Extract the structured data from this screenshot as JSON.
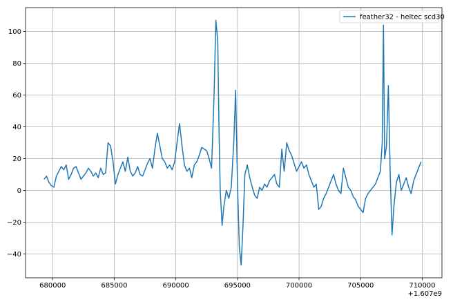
{
  "chart_data": {
    "type": "line",
    "title": "",
    "xlabel": "",
    "ylabel": "",
    "x_offset_label": "+1.607e9",
    "xlim": [
      677800,
      711600
    ],
    "ylim": [
      -55,
      115
    ],
    "xticks": [
      {
        "value": 680000,
        "label": "680000"
      },
      {
        "value": 685000,
        "label": "685000"
      },
      {
        "value": 690000,
        "label": "690000"
      },
      {
        "value": 695000,
        "label": "695000"
      },
      {
        "value": 700000,
        "label": "700000"
      },
      {
        "value": 705000,
        "label": "705000"
      },
      {
        "value": 710000,
        "label": "710000"
      }
    ],
    "yticks": [
      {
        "value": -40,
        "label": "−40"
      },
      {
        "value": -20,
        "label": "−20"
      },
      {
        "value": 0,
        "label": "0"
      },
      {
        "value": 20,
        "label": "20"
      },
      {
        "value": 40,
        "label": "40"
      },
      {
        "value": 60,
        "label": "60"
      },
      {
        "value": 80,
        "label": "80"
      },
      {
        "value": 100,
        "label": "100"
      }
    ],
    "grid": true,
    "legend_position": "top-right",
    "series": [
      {
        "name": "feather32 - heltec scd30",
        "color": "#1f77b4",
        "points": [
          [
            679300,
            7
          ],
          [
            679500,
            9
          ],
          [
            679700,
            5
          ],
          [
            679900,
            3
          ],
          [
            680100,
            2
          ],
          [
            680300,
            9
          ],
          [
            680500,
            12
          ],
          [
            680700,
            15
          ],
          [
            680900,
            13
          ],
          [
            681100,
            16
          ],
          [
            681300,
            7
          ],
          [
            681500,
            10
          ],
          [
            681700,
            14
          ],
          [
            681900,
            15
          ],
          [
            682100,
            11
          ],
          [
            682300,
            7
          ],
          [
            682500,
            9
          ],
          [
            682700,
            11
          ],
          [
            682900,
            14
          ],
          [
            683100,
            12
          ],
          [
            683300,
            9
          ],
          [
            683500,
            11
          ],
          [
            683700,
            8
          ],
          [
            683900,
            14
          ],
          [
            684100,
            10
          ],
          [
            684300,
            11
          ],
          [
            684500,
            30
          ],
          [
            684700,
            28
          ],
          [
            684900,
            18
          ],
          [
            685100,
            4
          ],
          [
            685300,
            10
          ],
          [
            685500,
            14
          ],
          [
            685700,
            18
          ],
          [
            685900,
            12
          ],
          [
            686100,
            21
          ],
          [
            686300,
            12
          ],
          [
            686500,
            9
          ],
          [
            686700,
            11
          ],
          [
            686900,
            15
          ],
          [
            687100,
            10
          ],
          [
            687300,
            9
          ],
          [
            687500,
            13
          ],
          [
            687700,
            17
          ],
          [
            687900,
            20
          ],
          [
            688100,
            14
          ],
          [
            688300,
            26
          ],
          [
            688500,
            36
          ],
          [
            688700,
            28
          ],
          [
            688900,
            20
          ],
          [
            689100,
            18
          ],
          [
            689300,
            14
          ],
          [
            689500,
            16
          ],
          [
            689700,
            13
          ],
          [
            689900,
            18
          ],
          [
            690100,
            30
          ],
          [
            690300,
            42
          ],
          [
            690500,
            28
          ],
          [
            690700,
            16
          ],
          [
            690900,
            12
          ],
          [
            691100,
            14
          ],
          [
            691300,
            8
          ],
          [
            691500,
            16
          ],
          [
            691700,
            18
          ],
          [
            691900,
            22
          ],
          [
            692100,
            27
          ],
          [
            692300,
            26
          ],
          [
            692500,
            25
          ],
          [
            692700,
            20
          ],
          [
            692900,
            14
          ],
          [
            693100,
            60
          ],
          [
            693250,
            107
          ],
          [
            693400,
            94
          ],
          [
            693500,
            40
          ],
          [
            693600,
            0
          ],
          [
            693750,
            -22
          ],
          [
            693900,
            -10
          ],
          [
            694100,
            0
          ],
          [
            694300,
            -5
          ],
          [
            694500,
            2
          ],
          [
            694700,
            30
          ],
          [
            694850,
            63
          ],
          [
            695000,
            5
          ],
          [
            695150,
            -35
          ],
          [
            695300,
            -47
          ],
          [
            695450,
            -22
          ],
          [
            695600,
            10
          ],
          [
            695800,
            16
          ],
          [
            696000,
            8
          ],
          [
            696200,
            2
          ],
          [
            696400,
            -3
          ],
          [
            696600,
            -5
          ],
          [
            696800,
            2
          ],
          [
            697000,
            0
          ],
          [
            697200,
            4
          ],
          [
            697400,
            2
          ],
          [
            697600,
            6
          ],
          [
            697800,
            8
          ],
          [
            698000,
            10
          ],
          [
            698200,
            4
          ],
          [
            698400,
            2
          ],
          [
            698600,
            26
          ],
          [
            698800,
            12
          ],
          [
            699000,
            30
          ],
          [
            699200,
            25
          ],
          [
            699400,
            22
          ],
          [
            699600,
            17
          ],
          [
            699800,
            12
          ],
          [
            700000,
            15
          ],
          [
            700200,
            18
          ],
          [
            700400,
            14
          ],
          [
            700600,
            16
          ],
          [
            700800,
            10
          ],
          [
            701000,
            6
          ],
          [
            701200,
            2
          ],
          [
            701400,
            4
          ],
          [
            701600,
            -12
          ],
          [
            701800,
            -10
          ],
          [
            702000,
            -5
          ],
          [
            702200,
            -2
          ],
          [
            702400,
            2
          ],
          [
            702600,
            6
          ],
          [
            702800,
            10
          ],
          [
            703000,
            4
          ],
          [
            703200,
            0
          ],
          [
            703400,
            -2
          ],
          [
            703600,
            14
          ],
          [
            703800,
            8
          ],
          [
            704000,
            2
          ],
          [
            704200,
            0
          ],
          [
            704400,
            -4
          ],
          [
            704600,
            -6
          ],
          [
            704800,
            -10
          ],
          [
            705000,
            -12
          ],
          [
            705200,
            -14
          ],
          [
            705400,
            -5
          ],
          [
            705600,
            -2
          ],
          [
            705800,
            0
          ],
          [
            706000,
            2
          ],
          [
            706200,
            4
          ],
          [
            706400,
            8
          ],
          [
            706600,
            12
          ],
          [
            706750,
            30
          ],
          [
            706850,
            104
          ],
          [
            706950,
            20
          ],
          [
            707100,
            28
          ],
          [
            707250,
            66
          ],
          [
            707400,
            10
          ],
          [
            707550,
            -28
          ],
          [
            707700,
            -10
          ],
          [
            707900,
            5
          ],
          [
            708100,
            10
          ],
          [
            708300,
            0
          ],
          [
            708500,
            4
          ],
          [
            708700,
            8
          ],
          [
            708900,
            2
          ],
          [
            709100,
            -2
          ],
          [
            709300,
            6
          ],
          [
            709500,
            10
          ],
          [
            709700,
            14
          ],
          [
            709900,
            18
          ]
        ]
      }
    ]
  }
}
